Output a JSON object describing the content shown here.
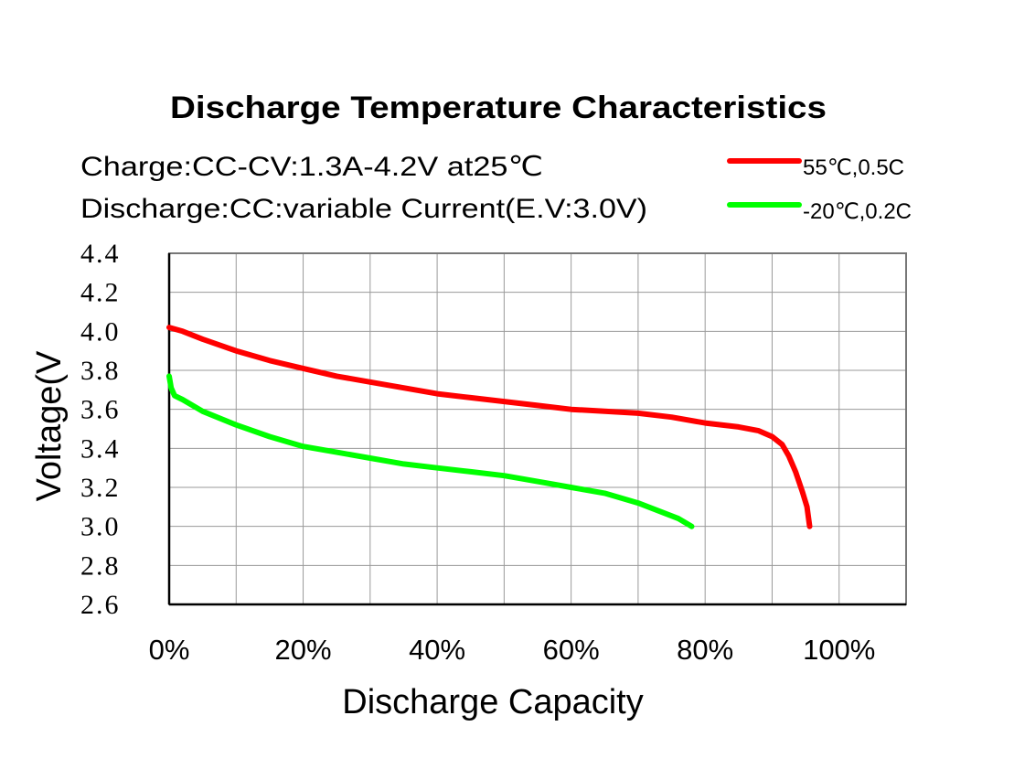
{
  "chart_data": {
    "type": "line",
    "title": "Discharge Temperature Characteristics",
    "subtitle_lines": [
      "Charge:CC-CV:1.3A-4.2V   at25℃",
      "Discharge:CC:variable Current(E.V:3.0V)"
    ],
    "xlabel": "Discharge Capacity",
    "ylabel": "Voltage(V",
    "xlim": [
      0,
      110
    ],
    "ylim": [
      2.6,
      4.4
    ],
    "x_ticks": [
      0,
      20,
      40,
      60,
      80,
      100
    ],
    "x_tick_labels": [
      "0%",
      "20%",
      "40%",
      "60%",
      "80%",
      "100%"
    ],
    "y_ticks": [
      2.6,
      2.8,
      3.0,
      3.2,
      3.4,
      3.6,
      3.8,
      4.0,
      4.2,
      4.4
    ],
    "y_tick_labels": [
      "2.6",
      "2.8",
      "3.0",
      "3.2",
      "3.4",
      "3.6",
      "3.8",
      "4.0",
      "4.2",
      "4.4"
    ],
    "x_grid_step": 10,
    "grid": true,
    "legend_position": "top-right",
    "series": [
      {
        "name": "55℃,0.5C",
        "color": "#ff0000",
        "x": [
          0,
          2,
          5,
          10,
          15,
          20,
          25,
          30,
          35,
          40,
          45,
          50,
          55,
          60,
          65,
          70,
          75,
          80,
          85,
          88,
          90,
          91.5,
          92.5,
          93.5,
          94.5,
          95.2,
          95.6
        ],
        "y": [
          4.02,
          4.0,
          3.96,
          3.9,
          3.85,
          3.81,
          3.77,
          3.74,
          3.71,
          3.68,
          3.66,
          3.64,
          3.62,
          3.6,
          3.59,
          3.58,
          3.56,
          3.53,
          3.51,
          3.49,
          3.46,
          3.42,
          3.36,
          3.28,
          3.18,
          3.1,
          3.0
        ]
      },
      {
        "name": "-20℃,0.2C",
        "color": "#00ff00",
        "x": [
          0,
          0.3,
          0.8,
          2,
          5,
          10,
          15,
          20,
          25,
          30,
          35,
          40,
          45,
          50,
          55,
          60,
          65,
          70,
          73,
          76,
          78
        ],
        "y": [
          3.77,
          3.71,
          3.67,
          3.65,
          3.59,
          3.52,
          3.46,
          3.41,
          3.38,
          3.35,
          3.32,
          3.3,
          3.28,
          3.26,
          3.23,
          3.2,
          3.17,
          3.12,
          3.08,
          3.04,
          3.0
        ]
      }
    ]
  }
}
